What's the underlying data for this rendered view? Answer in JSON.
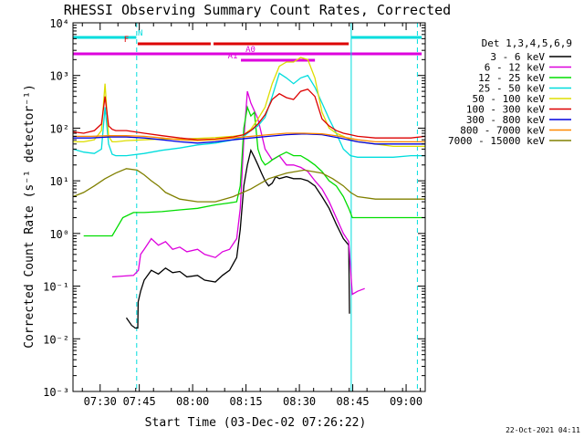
{
  "chart_data": {
    "type": "line",
    "title": "RHESSI Observing Summary Count Rates, Corrected",
    "xlabel": "Start Time (03-Dec-02 07:26:22)",
    "ylabel": "Corrected Count Rate (s⁻¹ detector⁻¹)",
    "x_unit": "minutes after 07:26:22",
    "xlim": [
      0,
      99
    ],
    "ylim": [
      0.001,
      10000
    ],
    "y_scale": "log",
    "x_ticks": [
      {
        "x": 7.63,
        "label": "07:30"
      },
      {
        "x": 18.63,
        "label": "07:45"
      },
      {
        "x": 33.63,
        "label": "08:00"
      },
      {
        "x": 48.63,
        "label": "08:15"
      },
      {
        "x": 63.63,
        "label": "08:30"
      },
      {
        "x": 78.63,
        "label": "08:45"
      },
      {
        "x": 93.63,
        "label": "09:00"
      }
    ],
    "y_ticks": [
      {
        "y": 0.001,
        "label": "10⁻³"
      },
      {
        "y": 0.01,
        "label": "10⁻²"
      },
      {
        "y": 0.1,
        "label": "10⁻¹"
      },
      {
        "y": 1,
        "label": "10⁰"
      },
      {
        "y": 10,
        "label": "10¹"
      },
      {
        "y": 100,
        "label": "10²"
      },
      {
        "y": 1000,
        "label": "10³"
      },
      {
        "y": 10000,
        "label": "10⁴"
      }
    ],
    "legend_title": "Det 1,3,4,5,6,9",
    "legend_position": "right",
    "series": [
      {
        "name": "3 - 6 keV",
        "color": "#000000",
        "x": [
          15.0,
          16.5,
          17.5,
          18.2,
          18.3,
          19,
          20,
          22,
          24,
          26,
          28,
          30,
          32,
          35,
          37,
          40,
          42,
          44,
          46,
          47,
          48,
          49,
          50,
          51,
          52,
          53,
          54,
          55,
          56,
          57,
          58,
          60,
          62,
          64,
          66,
          68,
          70,
          72,
          74,
          76,
          77.5,
          77.7
        ],
        "y": [
          0.025,
          0.018,
          0.016,
          0.016,
          0.05,
          0.08,
          0.13,
          0.2,
          0.17,
          0.22,
          0.18,
          0.19,
          0.15,
          0.16,
          0.13,
          0.12,
          0.16,
          0.2,
          0.35,
          1.2,
          8,
          20,
          38,
          28,
          20,
          14,
          10,
          8,
          9,
          12,
          11,
          12,
          11,
          11,
          10,
          8,
          5,
          3,
          1.5,
          0.8,
          0.6,
          0.03
        ]
      },
      {
        "name": "6 - 12 keV",
        "color": "#dd00dd",
        "x": [
          11,
          17,
          18.4,
          19,
          20,
          22,
          24,
          26,
          28,
          30,
          32,
          35,
          37,
          40,
          42,
          44,
          46,
          47,
          48,
          49,
          50,
          52,
          54,
          56,
          58,
          60,
          62,
          64,
          66,
          68,
          70,
          72,
          74,
          76,
          77.5,
          78.5,
          80,
          82
        ],
        "y": [
          0.15,
          0.16,
          0.2,
          0.4,
          0.5,
          0.8,
          0.6,
          0.7,
          0.5,
          0.55,
          0.45,
          0.5,
          0.4,
          0.35,
          0.45,
          0.5,
          0.8,
          3,
          60,
          500,
          300,
          150,
          40,
          25,
          30,
          20,
          20,
          18,
          15,
          10,
          7,
          4,
          2,
          1,
          0.7,
          0.07,
          0.08,
          0.09
        ]
      },
      {
        "name": "12 - 25 keV",
        "color": "#00dd00",
        "x": [
          3,
          11,
          14,
          17,
          18.5,
          20,
          25,
          30,
          35,
          40,
          44,
          46,
          47,
          48,
          49,
          50,
          51,
          52,
          53,
          54,
          55,
          56,
          58,
          60,
          62,
          64,
          66,
          68,
          70,
          72,
          74,
          76,
          77.5,
          78.5,
          80,
          85,
          90,
          95,
          99
        ],
        "y": [
          0.9,
          0.9,
          2,
          2.5,
          2.5,
          2.5,
          2.6,
          2.8,
          3,
          3.5,
          3.8,
          4,
          8,
          100,
          250,
          170,
          200,
          40,
          25,
          20,
          22,
          25,
          30,
          35,
          30,
          30,
          25,
          20,
          15,
          10,
          8,
          5,
          3,
          2,
          2,
          2,
          2,
          2,
          2
        ]
      },
      {
        "name": "25 - 50 keV",
        "color": "#00dddd",
        "x": [
          0,
          3,
          6,
          8,
          9,
          10,
          11,
          12,
          15,
          20,
          25,
          30,
          35,
          40,
          45,
          48,
          50,
          52,
          54,
          56,
          58,
          60,
          62,
          64,
          66,
          68,
          70,
          72,
          74,
          76,
          78,
          80,
          85,
          90,
          95,
          99
        ],
        "y": [
          40,
          35,
          33,
          40,
          250,
          50,
          32,
          30,
          30,
          33,
          38,
          42,
          48,
          52,
          60,
          70,
          90,
          110,
          160,
          400,
          1100,
          900,
          700,
          900,
          1000,
          600,
          300,
          150,
          80,
          40,
          30,
          28,
          28,
          28,
          30,
          30
        ]
      },
      {
        "name": "50 - 100 keV",
        "color": "#dddd00",
        "x": [
          0,
          3,
          6,
          8,
          9,
          10,
          11,
          12,
          15,
          20,
          25,
          30,
          35,
          40,
          45,
          48,
          50,
          52,
          54,
          56,
          58,
          60,
          62,
          64,
          66,
          68,
          70,
          72,
          74,
          76,
          78,
          80,
          85,
          90,
          95,
          99
        ],
        "y": [
          55,
          55,
          60,
          90,
          700,
          70,
          55,
          55,
          58,
          60,
          62,
          62,
          64,
          66,
          70,
          75,
          95,
          150,
          250,
          700,
          1500,
          1800,
          1800,
          2200,
          2000,
          900,
          200,
          100,
          80,
          70,
          60,
          55,
          50,
          45,
          45,
          45
        ]
      },
      {
        "name": "100 - 300 keV",
        "color": "#dd0000",
        "x": [
          0,
          3,
          6,
          8,
          9,
          10,
          11,
          12,
          15,
          20,
          25,
          30,
          35,
          40,
          45,
          48,
          50,
          52,
          54,
          56,
          58,
          60,
          62,
          64,
          66,
          68,
          70,
          72,
          74,
          76,
          78,
          80,
          85,
          90,
          95,
          99
        ],
        "y": [
          85,
          80,
          90,
          120,
          400,
          110,
          95,
          90,
          90,
          80,
          72,
          65,
          60,
          62,
          68,
          75,
          90,
          120,
          180,
          350,
          450,
          380,
          350,
          500,
          550,
          400,
          150,
          110,
          90,
          80,
          75,
          70,
          65,
          65,
          65,
          70
        ]
      },
      {
        "name": "300 - 800 keV",
        "color": "#0000dd",
        "x": [
          0,
          5,
          10,
          15,
          20,
          25,
          30,
          35,
          40,
          45,
          50,
          55,
          60,
          65,
          70,
          75,
          80,
          85,
          90,
          95,
          99
        ],
        "y": [
          65,
          65,
          68,
          68,
          65,
          60,
          55,
          52,
          55,
          60,
          65,
          70,
          75,
          78,
          75,
          65,
          55,
          50,
          50,
          50,
          50
        ]
      },
      {
        "name": "800 - 7000 keV",
        "color": "#ff8800",
        "x": [
          0,
          5,
          10,
          15,
          20,
          25,
          30,
          35,
          40,
          45,
          50,
          55,
          60,
          65,
          70,
          75,
          80,
          85,
          90,
          95,
          99
        ],
        "y": [
          70,
          70,
          72,
          72,
          70,
          65,
          60,
          58,
          60,
          65,
          70,
          75,
          80,
          80,
          78,
          70,
          60,
          55,
          55,
          55,
          55
        ]
      },
      {
        "name": "7000 - 15000 keV",
        "color": "#808000",
        "x": [
          0,
          3,
          6,
          9,
          12,
          15,
          18,
          20,
          22,
          24,
          26,
          30,
          35,
          40,
          45,
          50,
          55,
          60,
          65,
          70,
          73,
          76,
          78,
          80,
          85,
          90,
          95,
          99
        ],
        "y": [
          5,
          6,
          8,
          11,
          14,
          17,
          16,
          13,
          10,
          8,
          6,
          4.5,
          4,
          4,
          5,
          7,
          11,
          14,
          16,
          14,
          11,
          8,
          6,
          5,
          4.5,
          4.5,
          4.5,
          4.5
        ]
      }
    ],
    "overlay_bars": [
      {
        "label": "N",
        "color": "#00dddd",
        "segments": [
          [
            0,
            17.8
          ],
          [
            78.2,
            98
          ]
        ]
      },
      {
        "label": "F",
        "color": "#dd0000",
        "segments": [
          [
            18.2,
            38.7
          ],
          [
            39.5,
            77.5
          ]
        ]
      },
      {
        "label": "A0",
        "color": "#dd00dd",
        "segments": [
          [
            0,
            98
          ]
        ]
      },
      {
        "label": "A1",
        "color": "#dd00dd",
        "segments": [
          [
            47.2,
            68
          ]
        ]
      }
    ],
    "vertical_markers": [
      {
        "x": 0,
        "style": "solid",
        "color": "#00dddd"
      },
      {
        "x": 17.9,
        "style": "dashed",
        "color": "#00dddd"
      },
      {
        "x": 78.2,
        "style": "solid",
        "color": "#00dddd"
      },
      {
        "x": 96.8,
        "style": "dashed",
        "color": "#00dddd"
      }
    ],
    "footer_date": "22-Oct-2021 04:11"
  }
}
